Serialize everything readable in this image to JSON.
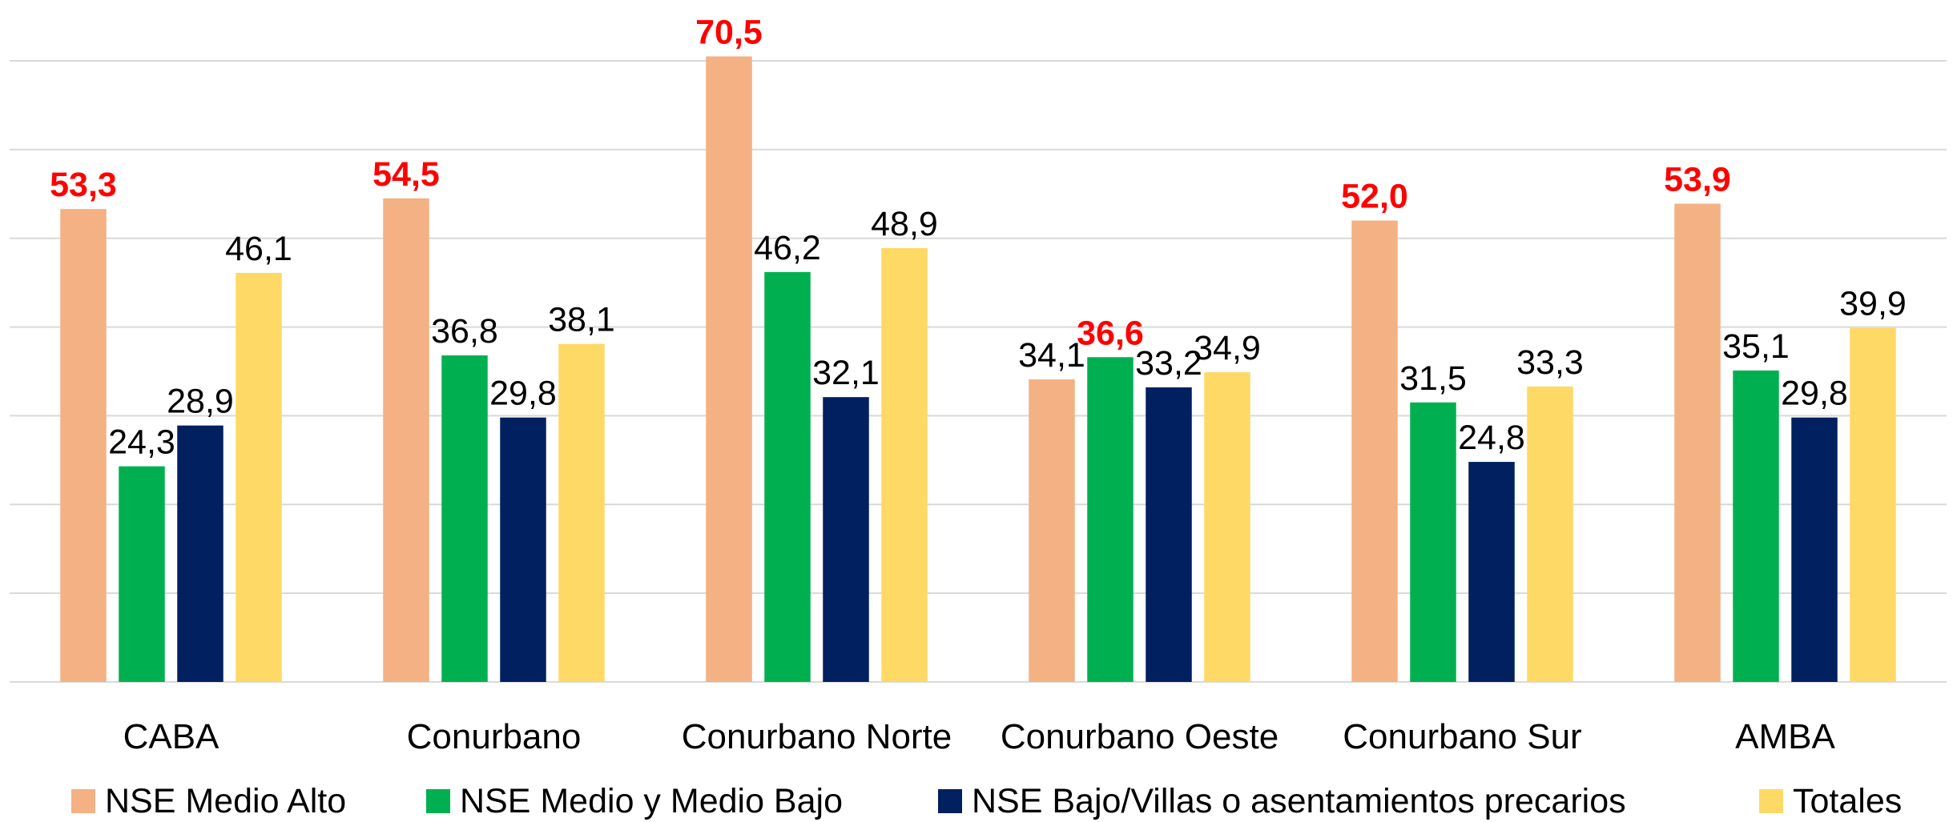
{
  "chart_data": {
    "type": "bar",
    "categories": [
      "CABA",
      "Conurbano",
      "Conurbano Norte",
      "Conurbano Oeste",
      "Conurbano Sur",
      "AMBA"
    ],
    "series": [
      {
        "name": "NSE Medio Alto",
        "color": "#f4b183",
        "values": [
          53.3,
          54.5,
          70.5,
          34.1,
          52.0,
          53.9
        ],
        "value_labels": [
          "53,3",
          "54,5",
          "70,5",
          "34,1",
          "52,0",
          "53,9"
        ]
      },
      {
        "name": "NSE Medio y Medio Bajo",
        "color": "#00b050",
        "values": [
          24.3,
          36.8,
          46.2,
          36.6,
          31.5,
          35.1
        ],
        "value_labels": [
          "24,3",
          "36,8",
          "46,2",
          "36,6",
          "31,5",
          "35,1"
        ]
      },
      {
        "name": "NSE Bajo/Villas o asentamientos precarios",
        "color": "#002060",
        "values": [
          28.9,
          29.8,
          32.1,
          33.2,
          24.8,
          29.8
        ],
        "value_labels": [
          "28,9",
          "29,8",
          "32,1",
          "33,2",
          "24,8",
          "29,8"
        ]
      },
      {
        "name": "Totales",
        "color": "#ffd966",
        "values": [
          46.1,
          38.1,
          48.9,
          34.9,
          33.3,
          39.9
        ],
        "value_labels": [
          "46,1",
          "38,1",
          "48,9",
          "34,9",
          "33,3",
          "39,9"
        ]
      }
    ],
    "highlight_color": "#ff0000",
    "ylim": [
      0,
      70
    ],
    "yticks": [
      0,
      10,
      20,
      30,
      40,
      50,
      60,
      70
    ],
    "grid": true,
    "legend": "bottom"
  }
}
